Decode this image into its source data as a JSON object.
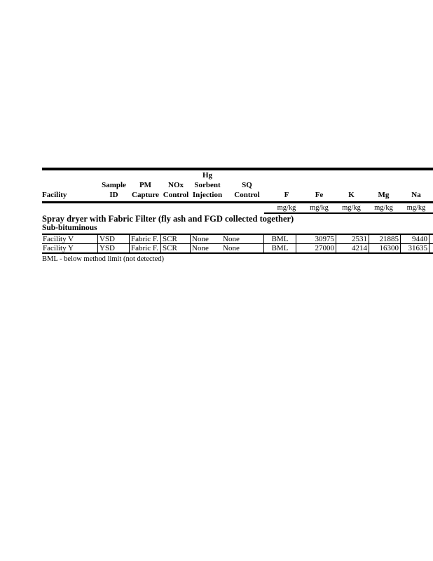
{
  "document": {
    "section_title": "Spray dryer with Fabric Filter (fly ash and FGD collected together)",
    "subsection_title": "Sub-bituminous",
    "footnote": "BML - below method limit (not detected)"
  },
  "table": {
    "header_labels": [
      "Facility",
      "Sample\nID",
      "PM\nCapture",
      "NOx\nControl",
      "Hg\nSorbent\nInjection",
      "SQ\nControl",
      "F",
      "Fe",
      "K",
      "Mg",
      "Na"
    ],
    "unit_labels": [
      "mg/kg",
      "mg/kg",
      "mg/kg",
      "mg/kg",
      "mg/kg"
    ],
    "rows": [
      {
        "cells": [
          "Facility V",
          "VSD",
          "Fabric F.",
          "SCR",
          "None",
          "None",
          "BML",
          "30975",
          "2531",
          "21885",
          "9440"
        ]
      },
      {
        "cells": [
          "Facility Y",
          "YSD",
          "Fabric F.",
          "SCR",
          "None",
          "None",
          "BML",
          "27000",
          "4214",
          "16300",
          "31635"
        ]
      }
    ]
  },
  "colors": {
    "text": "#000000",
    "background": "#ffffff",
    "rule": "#000000"
  }
}
